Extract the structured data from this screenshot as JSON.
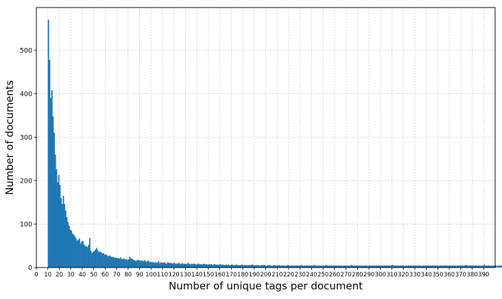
{
  "chart_data": {
    "type": "bar",
    "title": "",
    "xlabel": "Number of unique tags per document",
    "ylabel": "Number of documents",
    "xlim": [
      0,
      400
    ],
    "ylim": [
      0,
      598
    ],
    "grid": true,
    "legend": "none",
    "bar_color": "#1f77b4",
    "grid_color": "#cccccc",
    "yticks": [
      0,
      100,
      200,
      300,
      400,
      500
    ],
    "xticks": [
      0,
      10,
      20,
      30,
      40,
      50,
      60,
      70,
      80,
      90,
      100,
      110,
      120,
      130,
      140,
      150,
      160,
      170,
      180,
      190,
      200,
      210,
      220,
      230,
      240,
      250,
      260,
      270,
      280,
      290,
      300,
      310,
      320,
      330,
      340,
      350,
      360,
      370,
      380,
      390
    ],
    "x_start": 10,
    "values": [
      570,
      478,
      390,
      408,
      348,
      310,
      260,
      226,
      196,
      213,
      190,
      160,
      146,
      165,
      146,
      131,
      116,
      105,
      96,
      87,
      85,
      78,
      76,
      72,
      67,
      62,
      64,
      67,
      55,
      60,
      61,
      53,
      50,
      49,
      47,
      52,
      68,
      38,
      33,
      36,
      38,
      41,
      45,
      40,
      35,
      37,
      35,
      32,
      33,
      29,
      31,
      28,
      26,
      28,
      26,
      25,
      24,
      24,
      22,
      23,
      21,
      22,
      20,
      23,
      19,
      20,
      21,
      18,
      20,
      17,
      19,
      25,
      21,
      20,
      18,
      17,
      15,
      16,
      18,
      17,
      16,
      15,
      17,
      14,
      17,
      13,
      14,
      16,
      12,
      14,
      12,
      13,
      11,
      12,
      12,
      11,
      15,
      10,
      12,
      11,
      11,
      12,
      10,
      9,
      12,
      11,
      10,
      11,
      9,
      10,
      11,
      8,
      10,
      9,
      11,
      8,
      9,
      10,
      8,
      9,
      8,
      9,
      11,
      8,
      7,
      9,
      8,
      9,
      8,
      7,
      8,
      9,
      7,
      8,
      7,
      8,
      9,
      7,
      8,
      6,
      8,
      7,
      8,
      6,
      7,
      8,
      6,
      7,
      6,
      7,
      8,
      6,
      7,
      6,
      5,
      7,
      6,
      7,
      5,
      6,
      7,
      6,
      5,
      6,
      7,
      5,
      6,
      5,
      6,
      7,
      5,
      6,
      5,
      6,
      5,
      6,
      5,
      6,
      7,
      5,
      5,
      6,
      5,
      6,
      4,
      5,
      6,
      5,
      6,
      5,
      4,
      5,
      6,
      5,
      5,
      4,
      5,
      6,
      5,
      4,
      5,
      6,
      4,
      5,
      5,
      4,
      5,
      4,
      5,
      6,
      5,
      4,
      5,
      4,
      5,
      4,
      5,
      5,
      4,
      5,
      4,
      6,
      4,
      5,
      4,
      5,
      4,
      5,
      4,
      5,
      4,
      5,
      6,
      4,
      5,
      4,
      5,
      4,
      5,
      4,
      5,
      4,
      6,
      5,
      4,
      5,
      4,
      5,
      4,
      5,
      4,
      5,
      4,
      5,
      4,
      5,
      4,
      4,
      5,
      4,
      5,
      4,
      5,
      4,
      6,
      5,
      4,
      5,
      4,
      5,
      4,
      5,
      4,
      5,
      4,
      5,
      4,
      5,
      4,
      4,
      5,
      4,
      5,
      4,
      5,
      4,
      5,
      4,
      5,
      4,
      4,
      5,
      4,
      5,
      4,
      5,
      4,
      5,
      4,
      5,
      6,
      5,
      4,
      5,
      4,
      5,
      4,
      5,
      4,
      5,
      4,
      4,
      5,
      4,
      5,
      4,
      5,
      4,
      5,
      4,
      5,
      4,
      5,
      4,
      5,
      4,
      4,
      5,
      4,
      5,
      4,
      5,
      4,
      5,
      4,
      5,
      4,
      5,
      4,
      5,
      4,
      4,
      5,
      4,
      5,
      4,
      5,
      4,
      5,
      4,
      5,
      4,
      5,
      4,
      5,
      4,
      4,
      5,
      4,
      5,
      4,
      5,
      4,
      5,
      6,
      5,
      4,
      5,
      4,
      5,
      4,
      5,
      4,
      5,
      4,
      5,
      4,
      4,
      5,
      4,
      7,
      4,
      5,
      4,
      5,
      4,
      5,
      4,
      5,
      4,
      5,
      3,
      4,
      5,
      4,
      5,
      4,
      5,
      3,
      4
    ]
  }
}
